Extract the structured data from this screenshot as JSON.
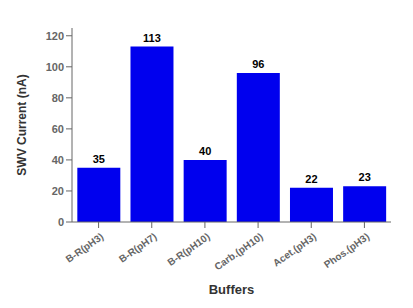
{
  "chart_data": {
    "type": "bar",
    "categories": [
      "B-R(pH3)",
      "B-R(pH7)",
      "B-R(pH10)",
      "Carb.(pH10)",
      "Acet.(pH3)",
      "Phos.(pH3)"
    ],
    "values": [
      35,
      113,
      40,
      96,
      22,
      23
    ],
    "color": "#0000EE",
    "xlabel": "Buffers",
    "ylabel": "SWV Current (nA)",
    "ylim": [
      0,
      125
    ],
    "yticks": [
      0,
      20,
      40,
      60,
      80,
      100,
      120
    ],
    "grid": false,
    "data_labels": true
  }
}
